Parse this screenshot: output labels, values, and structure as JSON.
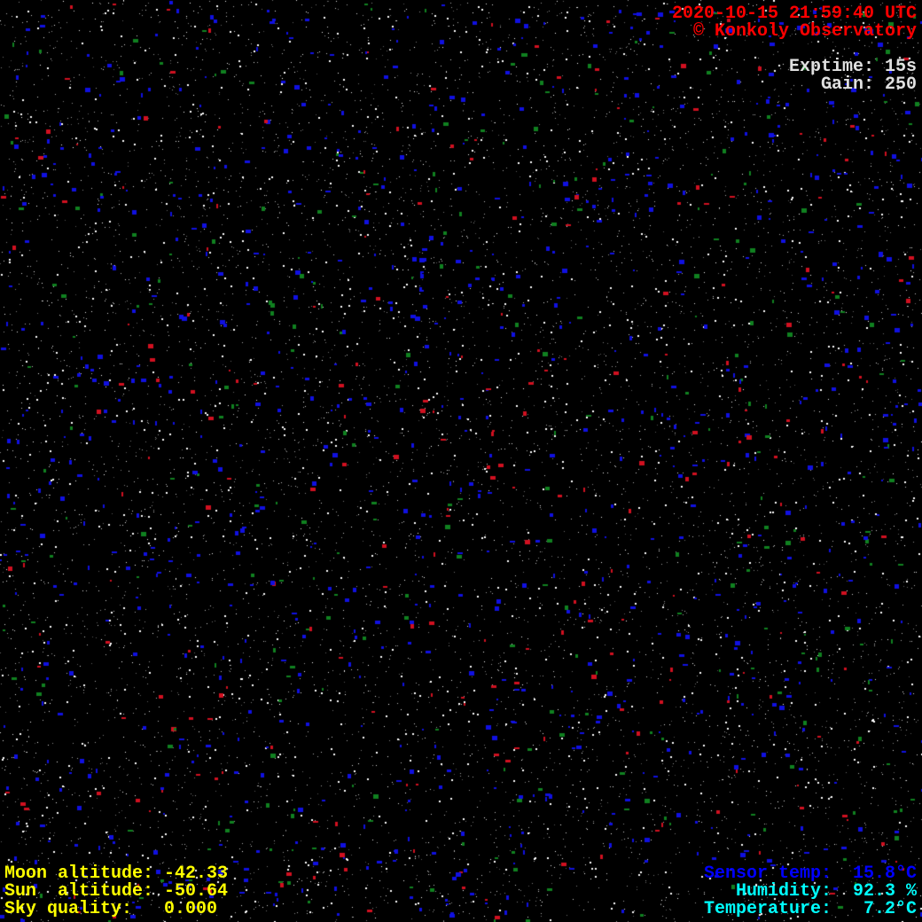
{
  "header": {
    "timestamp": "2020-10-15 21:59:40 UTC",
    "copyright": "© Konkoly Observatory",
    "exptime": "Exptime: 15s",
    "gain": "Gain: 250"
  },
  "ephemeris": {
    "moon": "Moon altitude: -42.33",
    "sun": "Sun  altitude: -50.64",
    "sky_quality": "Sky quality:   0.000"
  },
  "sensors": {
    "sensor_temp": "Sensor temp:  15.8°C",
    "humidity": "Humidity:  92.3 %",
    "temperature": "Temperature:   7.2°C"
  },
  "colors": {
    "timestamp": "#ff0000",
    "exposure": "#e0e0e0",
    "ephemeris": "#ffff00",
    "sensor_temp": "#0000ff",
    "weather": "#00ffff"
  }
}
